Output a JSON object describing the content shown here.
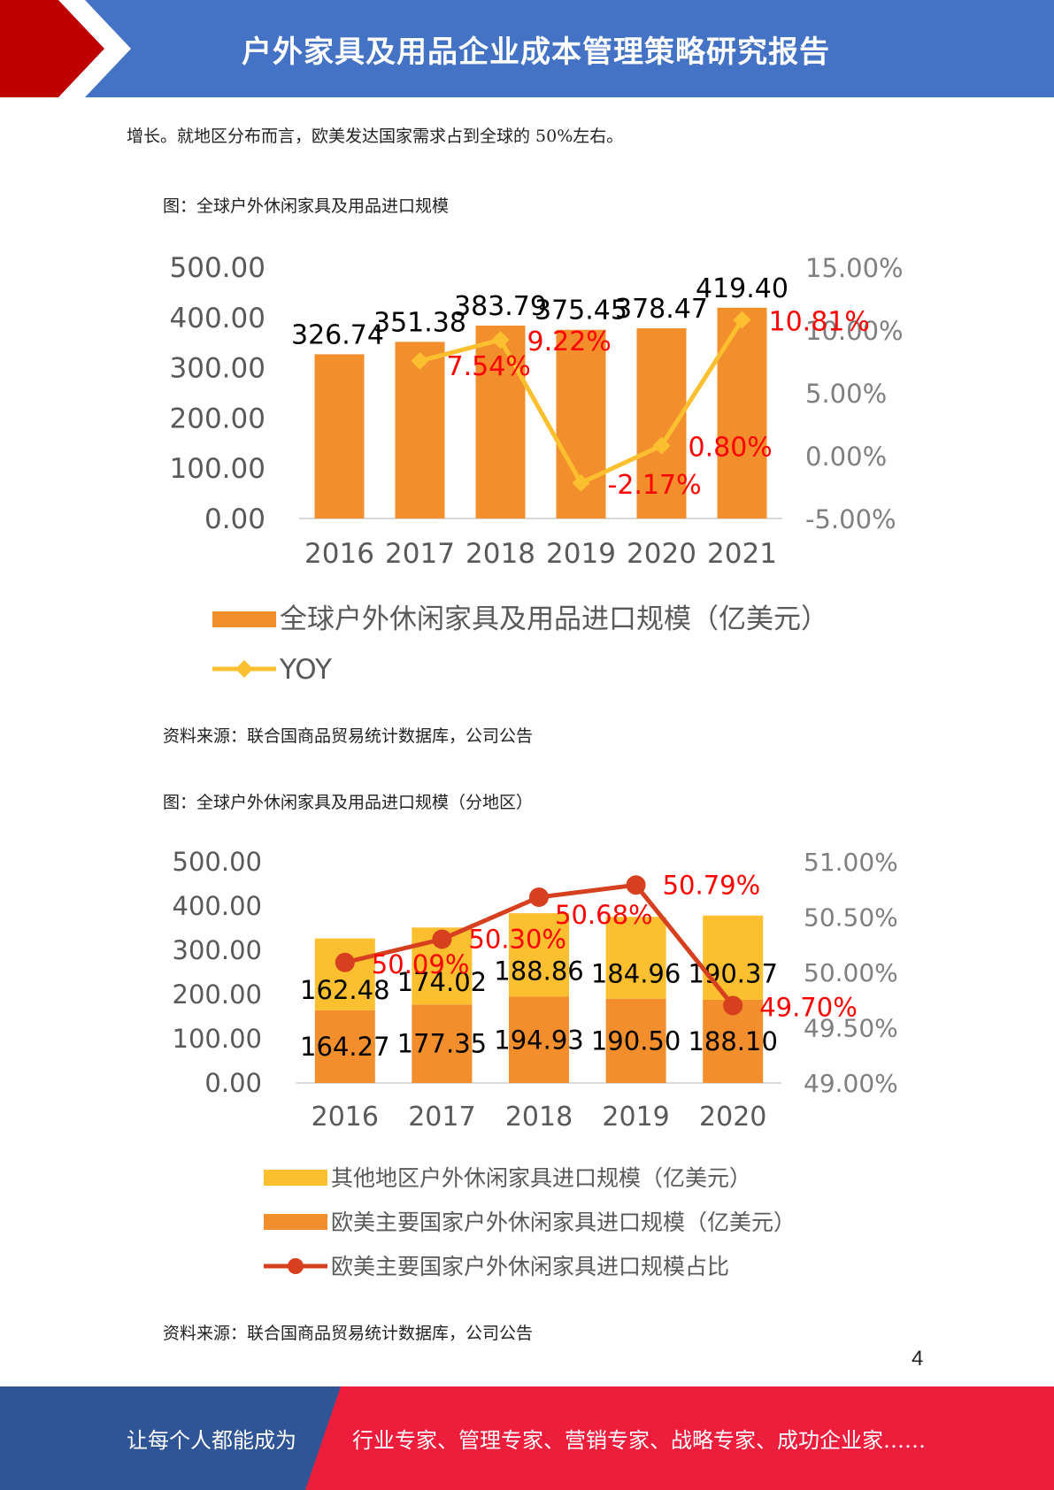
{
  "header": {
    "title": "户外家具及用品企业成本管理策略研究报告"
  },
  "body": {
    "paragraph": "增长。就地区分布而言，欧美发达国家需求占到全球的 50%左右。",
    "figure1_caption": "图：全球户外休闲家具及用品进口规模",
    "figure1_source": "资料来源：联合国商品贸易统计数据库，公司公告",
    "figure2_caption": "图：全球户外休闲家具及用品进口规模（分地区）",
    "figure2_source": "资料来源：联合国商品贸易统计数据库，公司公告"
  },
  "page_number": "4",
  "footer": {
    "left": "让每个人都能成为",
    "right": "行业专家、管理专家、营销专家、战略专家、成功企业家……"
  },
  "colors": {
    "header_blue": "#4472c4",
    "header_red": "#c00000",
    "bar_orange": "#f28e2b",
    "bar_yellow": "#fbbf2f",
    "line_yellow": "#fbbf2f",
    "line_red": "#d7401e",
    "label_red": "#ff0000",
    "footer_blue": "#2f5597",
    "footer_red": "#ee1d3b"
  },
  "chart_data": [
    {
      "type": "bar",
      "categories": [
        "2016",
        "2017",
        "2018",
        "2019",
        "2020",
        "2021"
      ],
      "series": [
        {
          "name": "全球户外休闲家具及用品进口规模（亿美元）",
          "type": "bar",
          "axis": "left",
          "values": [
            326.74,
            351.38,
            383.79,
            375.45,
            378.47,
            419.4
          ],
          "labels": [
            "326.74",
            "351.38",
            "383.79",
            "375.45",
            "378.47",
            "419.40"
          ]
        },
        {
          "name": "YOY",
          "type": "line",
          "axis": "right",
          "x": [
            "2017",
            "2018",
            "2019",
            "2020",
            "2021"
          ],
          "values": [
            7.54,
            9.22,
            -2.17,
            0.8,
            10.81
          ],
          "labels": [
            "7.54%",
            "9.22%",
            "-2.17%",
            "0.80%",
            "10.81%"
          ]
        }
      ],
      "ylim": [
        0,
        500
      ],
      "y_ticks": [
        "500.00",
        "400.00",
        "300.00",
        "200.00",
        "100.00",
        "0.00"
      ],
      "y2lim": [
        -5,
        15
      ],
      "y2_ticks": [
        "15.00%",
        "10.00%",
        "5.00%",
        "0.00%",
        "-5.00%"
      ],
      "legend": [
        "全球户外休闲家具及用品进口规模（亿美元）",
        "YOY"
      ],
      "legend_position": "bottom",
      "grid": false
    },
    {
      "type": "bar",
      "stacked": true,
      "categories": [
        "2016",
        "2017",
        "2018",
        "2019",
        "2020"
      ],
      "series": [
        {
          "name": "欧美主要国家户外休闲家具进口规模（亿美元）",
          "type": "bar",
          "axis": "left",
          "values": [
            164.27,
            177.35,
            194.93,
            190.5,
            188.1
          ],
          "labels": [
            "164.27",
            "177.35",
            "194.93",
            "190.50",
            "188.10"
          ]
        },
        {
          "name": "其他地区户外休闲家具进口规模（亿美元）",
          "type": "bar",
          "axis": "left",
          "values": [
            162.48,
            174.02,
            188.86,
            184.96,
            190.37
          ],
          "labels": [
            "162.48",
            "174.02",
            "188.86",
            "184.96",
            "190.37"
          ]
        },
        {
          "name": "欧美主要国家户外休闲家具进口规模占比",
          "type": "line",
          "axis": "right",
          "values": [
            50.09,
            50.3,
            50.68,
            50.79,
            49.7
          ],
          "labels": [
            "50.09%",
            "50.30%",
            "50.68%",
            "50.79%",
            "49.70%"
          ]
        }
      ],
      "ylim": [
        0,
        500
      ],
      "y_ticks": [
        "500.00",
        "400.00",
        "300.00",
        "200.00",
        "100.00",
        "0.00"
      ],
      "y2lim": [
        49,
        51
      ],
      "y2_ticks": [
        "51.00%",
        "50.50%",
        "50.00%",
        "49.50%",
        "49.00%"
      ],
      "legend": [
        "其他地区户外休闲家具进口规模（亿美元）",
        "欧美主要国家户外休闲家具进口规模（亿美元）",
        "欧美主要国家户外休闲家具进口规模占比"
      ],
      "legend_position": "bottom",
      "grid": false
    }
  ]
}
